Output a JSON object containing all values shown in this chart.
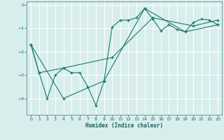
{
  "title": "",
  "xlabel": "Humidex (Indice chaleur)",
  "ylabel": "",
  "bg_color": "#d8eeed",
  "line_color": "#1a7a6e",
  "marker": "+",
  "grid_color": "#ffffff",
  "tick_color": "#1a6060",
  "label_color": "#1a6060",
  "spine_color": "#5a9090",
  "ylim": [
    -4.7,
    0.15
  ],
  "xlim": [
    -0.5,
    23.5
  ],
  "yticks": [
    0,
    -1,
    -2,
    -3,
    -4
  ],
  "xticks": [
    0,
    1,
    2,
    3,
    4,
    5,
    6,
    7,
    8,
    9,
    10,
    11,
    12,
    13,
    14,
    15,
    16,
    17,
    18,
    19,
    20,
    21,
    22,
    23
  ],
  "series": [
    {
      "x": [
        0,
        1,
        2,
        3,
        4,
        5,
        6,
        7,
        8,
        9,
        10,
        11,
        12,
        13,
        14,
        15,
        16,
        17,
        18,
        19,
        20,
        21,
        22,
        23
      ],
      "y": [
        -1.7,
        -2.9,
        -4.0,
        -3.0,
        -2.7,
        -2.9,
        -2.9,
        -3.5,
        -4.3,
        -3.25,
        -0.95,
        -0.65,
        -0.65,
        -0.55,
        -0.15,
        -0.6,
        -1.1,
        -0.85,
        -1.05,
        -1.15,
        -0.75,
        -0.6,
        -0.65,
        -0.85
      ]
    },
    {
      "x": [
        0,
        1,
        4,
        10,
        15,
        20,
        23
      ],
      "y": [
        -1.7,
        -2.9,
        -2.7,
        -2.25,
        -0.55,
        -0.9,
        -0.65
      ]
    },
    {
      "x": [
        0,
        4,
        9,
        14,
        19,
        23
      ],
      "y": [
        -1.7,
        -4.0,
        -3.25,
        -0.15,
        -1.15,
        -0.85
      ]
    }
  ]
}
